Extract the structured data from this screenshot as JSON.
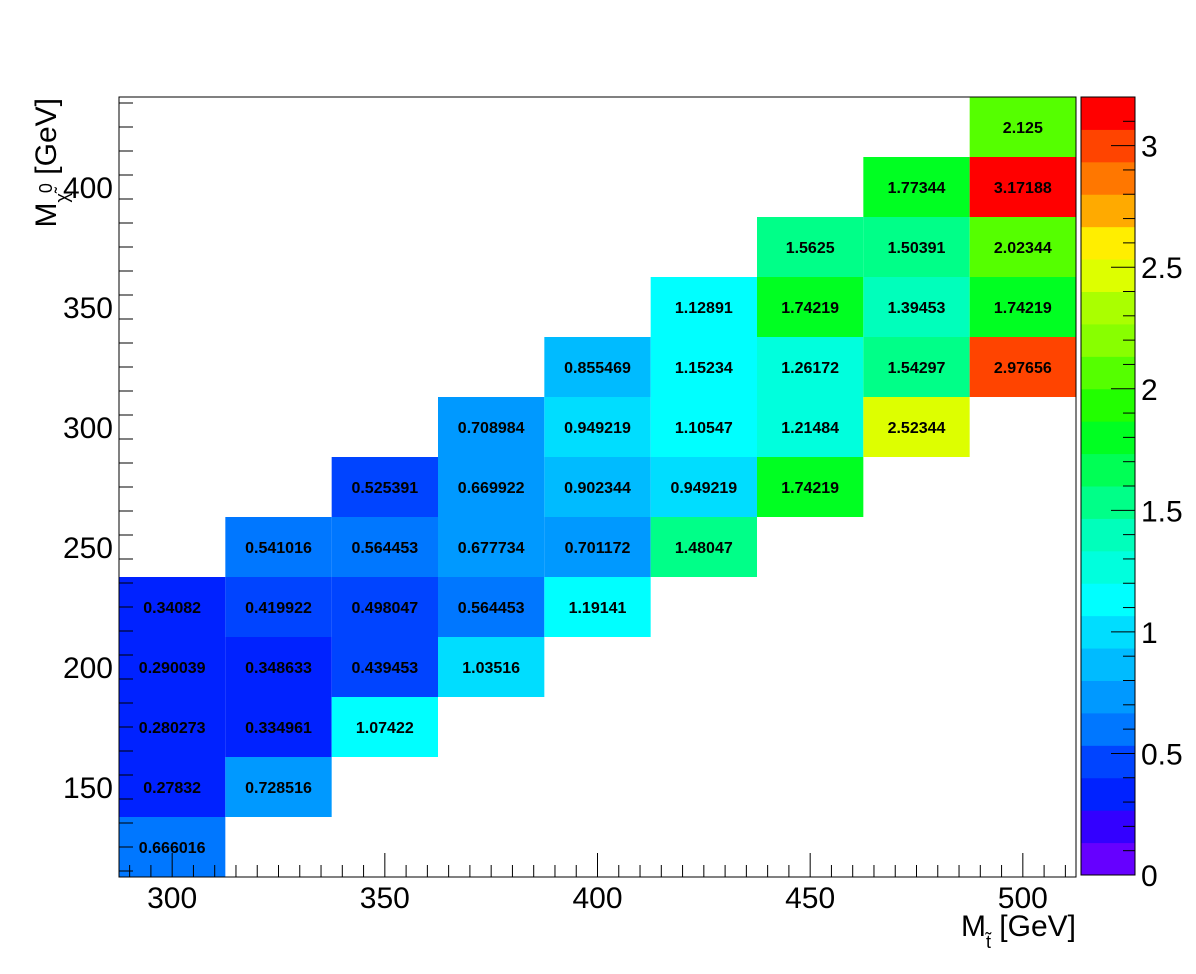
{
  "chart_data": {
    "type": "heatmap",
    "x_bin_width": 25,
    "y_bin_width": 25,
    "xlim": [
      287.5,
      512.5
    ],
    "ylim": [
      112.5,
      437.5
    ],
    "zlim": [
      0,
      3.2
    ],
    "x_ticks": [
      300,
      350,
      400,
      450,
      500
    ],
    "y_ticks": [
      150,
      200,
      250,
      300,
      350,
      400
    ],
    "z_ticks": [
      0,
      0.5,
      1,
      1.5,
      2,
      2.5,
      3
    ],
    "x_tick_labels": [
      "300",
      "350",
      "400",
      "450",
      "500"
    ],
    "y_tick_labels": [
      "150",
      "200",
      "250",
      "300",
      "350",
      "400"
    ],
    "z_tick_labels": [
      "0",
      "0.5",
      "1",
      "1.5",
      "2",
      "2.5",
      "3"
    ],
    "xlabel": {
      "main": "M",
      "sub": "t̃",
      "unit": " [GeV]"
    },
    "ylabel": {
      "main": "M",
      "sub": "χ̃",
      "sup": "0",
      "unit": " [GeV]"
    },
    "palette": [
      "#6600ff",
      "#3300ff",
      "#0022ff",
      "#0044ff",
      "#0077ff",
      "#0099ff",
      "#00bbff",
      "#00ddff",
      "#00ffff",
      "#00ffdd",
      "#00ffbb",
      "#00ff88",
      "#00ff55",
      "#00ff22",
      "#22ff00",
      "#55ff00",
      "#88ff00",
      "#aaff00",
      "#ddff00",
      "#ffee00",
      "#ffaa00",
      "#ff7700",
      "#ff4400",
      "#ff0000"
    ],
    "cells": [
      {
        "x": 300,
        "y": 125,
        "v": 0.666016,
        "label": "0.666016"
      },
      {
        "x": 300,
        "y": 150,
        "v": 0.27832,
        "label": "0.27832"
      },
      {
        "x": 300,
        "y": 175,
        "v": 0.280273,
        "label": "0.280273"
      },
      {
        "x": 300,
        "y": 200,
        "v": 0.290039,
        "label": "0.290039"
      },
      {
        "x": 300,
        "y": 225,
        "v": 0.34082,
        "label": "0.34082"
      },
      {
        "x": 325,
        "y": 150,
        "v": 0.728516,
        "label": "0.728516"
      },
      {
        "x": 325,
        "y": 175,
        "v": 0.334961,
        "label": "0.334961"
      },
      {
        "x": 325,
        "y": 200,
        "v": 0.348633,
        "label": "0.348633"
      },
      {
        "x": 325,
        "y": 225,
        "v": 0.419922,
        "label": "0.419922"
      },
      {
        "x": 325,
        "y": 250,
        "v": 0.541016,
        "label": "0.541016"
      },
      {
        "x": 350,
        "y": 175,
        "v": 1.07422,
        "label": "1.07422"
      },
      {
        "x": 350,
        "y": 200,
        "v": 0.439453,
        "label": "0.439453"
      },
      {
        "x": 350,
        "y": 225,
        "v": 0.498047,
        "label": "0.498047"
      },
      {
        "x": 350,
        "y": 250,
        "v": 0.564453,
        "label": "0.564453"
      },
      {
        "x": 350,
        "y": 275,
        "v": 0.525391,
        "label": "0.525391"
      },
      {
        "x": 375,
        "y": 200,
        "v": 1.03516,
        "label": "1.03516"
      },
      {
        "x": 375,
        "y": 225,
        "v": 0.564453,
        "label": "0.564453"
      },
      {
        "x": 375,
        "y": 250,
        "v": 0.677734,
        "label": "0.677734"
      },
      {
        "x": 375,
        "y": 275,
        "v": 0.669922,
        "label": "0.669922"
      },
      {
        "x": 375,
        "y": 300,
        "v": 0.708984,
        "label": "0.708984"
      },
      {
        "x": 400,
        "y": 225,
        "v": 1.19141,
        "label": "1.19141"
      },
      {
        "x": 400,
        "y": 250,
        "v": 0.701172,
        "label": "0.701172"
      },
      {
        "x": 400,
        "y": 275,
        "v": 0.902344,
        "label": "0.902344"
      },
      {
        "x": 400,
        "y": 300,
        "v": 0.949219,
        "label": "0.949219"
      },
      {
        "x": 400,
        "y": 325,
        "v": 0.855469,
        "label": "0.855469"
      },
      {
        "x": 425,
        "y": 250,
        "v": 1.48047,
        "label": "1.48047"
      },
      {
        "x": 425,
        "y": 275,
        "v": 0.949219,
        "label": "0.949219"
      },
      {
        "x": 425,
        "y": 300,
        "v": 1.10547,
        "label": "1.10547"
      },
      {
        "x": 425,
        "y": 325,
        "v": 1.15234,
        "label": "1.15234"
      },
      {
        "x": 425,
        "y": 350,
        "v": 1.12891,
        "label": "1.12891"
      },
      {
        "x": 450,
        "y": 275,
        "v": 1.74219,
        "label": "1.74219"
      },
      {
        "x": 450,
        "y": 300,
        "v": 1.21484,
        "label": "1.21484"
      },
      {
        "x": 450,
        "y": 325,
        "v": 1.26172,
        "label": "1.26172"
      },
      {
        "x": 450,
        "y": 350,
        "v": 1.74219,
        "label": "1.74219"
      },
      {
        "x": 450,
        "y": 375,
        "v": 1.5625,
        "label": "1.5625"
      },
      {
        "x": 475,
        "y": 300,
        "v": 2.52344,
        "label": "2.52344"
      },
      {
        "x": 475,
        "y": 325,
        "v": 1.54297,
        "label": "1.54297"
      },
      {
        "x": 475,
        "y": 350,
        "v": 1.39453,
        "label": "1.39453"
      },
      {
        "x": 475,
        "y": 375,
        "v": 1.50391,
        "label": "1.50391"
      },
      {
        "x": 475,
        "y": 400,
        "v": 1.77344,
        "label": "1.77344"
      },
      {
        "x": 500,
        "y": 325,
        "v": 2.97656,
        "label": "2.97656"
      },
      {
        "x": 500,
        "y": 350,
        "v": 1.74219,
        "label": "1.74219"
      },
      {
        "x": 500,
        "y": 375,
        "v": 2.02344,
        "label": "2.02344"
      },
      {
        "x": 500,
        "y": 400,
        "v": 3.17188,
        "label": "3.17188"
      },
      {
        "x": 500,
        "y": 425,
        "v": 2.125,
        "label": "2.125"
      }
    ]
  }
}
